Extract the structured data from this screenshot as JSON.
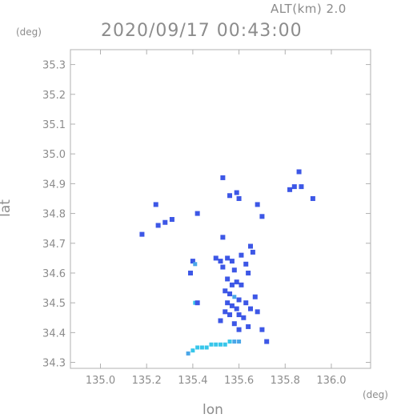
{
  "header": {
    "altitude_label": "ALT(km)  2.0",
    "timestamp": "2020/09/17 00:43:00"
  },
  "chart_data": {
    "type": "heatmap",
    "title": "2020/09/17 00:43:00",
    "subtitle": "ALT(km)  2.0",
    "xlabel": "lon",
    "ylabel": "lat",
    "x_unit": "(deg)",
    "y_unit": "(deg)",
    "xlim": [
      134.87,
      136.17
    ],
    "ylim": [
      34.28,
      35.35
    ],
    "x_ticks": [
      "135.0",
      "135.2",
      "135.4",
      "135.6",
      "135.8",
      "136.0"
    ],
    "y_ticks": [
      "34.3",
      "34.4",
      "34.5",
      "34.6",
      "34.7",
      "34.8",
      "34.9",
      "35.0",
      "35.1",
      "35.2",
      "35.3"
    ],
    "grid": false,
    "colors": {
      "weak": "#4aa6e8",
      "moderate": "#3d57e6",
      "light": "#37c6ea",
      "frame": "#b0b0b0"
    },
    "echo_cells": [
      {
        "lon": 135.18,
        "lat": 34.73,
        "level": "moderate"
      },
      {
        "lon": 135.25,
        "lat": 34.76,
        "level": "moderate"
      },
      {
        "lon": 135.28,
        "lat": 34.77,
        "level": "moderate"
      },
      {
        "lon": 135.31,
        "lat": 34.78,
        "level": "moderate"
      },
      {
        "lon": 135.24,
        "lat": 34.83,
        "level": "moderate"
      },
      {
        "lon": 135.42,
        "lat": 34.8,
        "level": "moderate"
      },
      {
        "lon": 135.53,
        "lat": 34.92,
        "level": "moderate"
      },
      {
        "lon": 135.56,
        "lat": 34.86,
        "level": "moderate"
      },
      {
        "lon": 135.59,
        "lat": 34.87,
        "level": "moderate"
      },
      {
        "lon": 135.6,
        "lat": 34.85,
        "level": "moderate"
      },
      {
        "lon": 135.68,
        "lat": 34.83,
        "level": "moderate"
      },
      {
        "lon": 135.7,
        "lat": 34.79,
        "level": "moderate"
      },
      {
        "lon": 135.82,
        "lat": 34.88,
        "level": "moderate"
      },
      {
        "lon": 135.84,
        "lat": 34.89,
        "level": "moderate"
      },
      {
        "lon": 135.86,
        "lat": 34.94,
        "level": "moderate"
      },
      {
        "lon": 135.87,
        "lat": 34.89,
        "level": "moderate"
      },
      {
        "lon": 135.92,
        "lat": 34.85,
        "level": "moderate"
      },
      {
        "lon": 135.4,
        "lat": 34.64,
        "level": "moderate"
      },
      {
        "lon": 135.41,
        "lat": 34.63,
        "level": "weak"
      },
      {
        "lon": 135.39,
        "lat": 34.6,
        "level": "moderate"
      },
      {
        "lon": 135.53,
        "lat": 34.72,
        "level": "moderate"
      },
      {
        "lon": 135.5,
        "lat": 34.65,
        "level": "moderate"
      },
      {
        "lon": 135.52,
        "lat": 34.64,
        "level": "moderate"
      },
      {
        "lon": 135.55,
        "lat": 34.65,
        "level": "moderate"
      },
      {
        "lon": 135.57,
        "lat": 34.64,
        "level": "moderate"
      },
      {
        "lon": 135.53,
        "lat": 34.62,
        "level": "moderate"
      },
      {
        "lon": 135.58,
        "lat": 34.61,
        "level": "moderate"
      },
      {
        "lon": 135.61,
        "lat": 34.66,
        "level": "moderate"
      },
      {
        "lon": 135.63,
        "lat": 34.63,
        "level": "moderate"
      },
      {
        "lon": 135.65,
        "lat": 34.69,
        "level": "moderate"
      },
      {
        "lon": 135.66,
        "lat": 34.67,
        "level": "moderate"
      },
      {
        "lon": 135.64,
        "lat": 34.6,
        "level": "moderate"
      },
      {
        "lon": 135.55,
        "lat": 34.58,
        "level": "moderate"
      },
      {
        "lon": 135.57,
        "lat": 34.56,
        "level": "moderate"
      },
      {
        "lon": 135.59,
        "lat": 34.57,
        "level": "moderate"
      },
      {
        "lon": 135.61,
        "lat": 34.56,
        "level": "moderate"
      },
      {
        "lon": 135.54,
        "lat": 34.54,
        "level": "moderate"
      },
      {
        "lon": 135.56,
        "lat": 34.53,
        "level": "moderate"
      },
      {
        "lon": 135.58,
        "lat": 34.52,
        "level": "weak"
      },
      {
        "lon": 135.6,
        "lat": 34.51,
        "level": "moderate"
      },
      {
        "lon": 135.55,
        "lat": 34.5,
        "level": "moderate"
      },
      {
        "lon": 135.57,
        "lat": 34.49,
        "level": "moderate"
      },
      {
        "lon": 135.59,
        "lat": 34.48,
        "level": "moderate"
      },
      {
        "lon": 135.54,
        "lat": 34.47,
        "level": "moderate"
      },
      {
        "lon": 135.56,
        "lat": 34.46,
        "level": "moderate"
      },
      {
        "lon": 135.6,
        "lat": 34.46,
        "level": "moderate"
      },
      {
        "lon": 135.63,
        "lat": 34.5,
        "level": "moderate"
      },
      {
        "lon": 135.65,
        "lat": 34.48,
        "level": "moderate"
      },
      {
        "lon": 135.62,
        "lat": 34.45,
        "level": "moderate"
      },
      {
        "lon": 135.67,
        "lat": 34.52,
        "level": "moderate"
      },
      {
        "lon": 135.68,
        "lat": 34.47,
        "level": "moderate"
      },
      {
        "lon": 135.52,
        "lat": 34.44,
        "level": "moderate"
      },
      {
        "lon": 135.58,
        "lat": 34.43,
        "level": "moderate"
      },
      {
        "lon": 135.6,
        "lat": 34.41,
        "level": "moderate"
      },
      {
        "lon": 135.64,
        "lat": 34.42,
        "level": "moderate"
      },
      {
        "lon": 135.7,
        "lat": 34.41,
        "level": "moderate"
      },
      {
        "lon": 135.72,
        "lat": 34.37,
        "level": "moderate"
      },
      {
        "lon": 135.41,
        "lat": 34.5,
        "level": "light"
      },
      {
        "lon": 135.42,
        "lat": 34.5,
        "level": "moderate"
      },
      {
        "lon": 135.38,
        "lat": 34.33,
        "level": "weak"
      },
      {
        "lon": 135.4,
        "lat": 34.34,
        "level": "light"
      },
      {
        "lon": 135.42,
        "lat": 34.35,
        "level": "light"
      },
      {
        "lon": 135.44,
        "lat": 34.35,
        "level": "light"
      },
      {
        "lon": 135.46,
        "lat": 34.35,
        "level": "light"
      },
      {
        "lon": 135.48,
        "lat": 34.36,
        "level": "light"
      },
      {
        "lon": 135.5,
        "lat": 34.36,
        "level": "light"
      },
      {
        "lon": 135.52,
        "lat": 34.36,
        "level": "light"
      },
      {
        "lon": 135.54,
        "lat": 34.36,
        "level": "light"
      },
      {
        "lon": 135.56,
        "lat": 34.37,
        "level": "light"
      },
      {
        "lon": 135.58,
        "lat": 34.37,
        "level": "weak"
      },
      {
        "lon": 135.6,
        "lat": 34.37,
        "level": "weak"
      }
    ]
  }
}
